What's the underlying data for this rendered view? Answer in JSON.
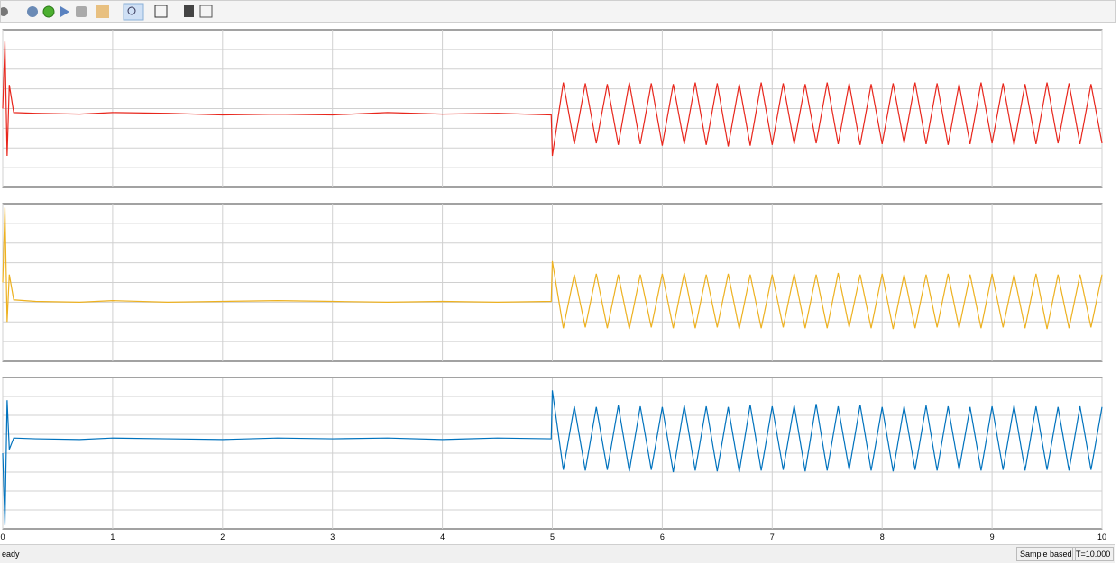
{
  "chart_data": [
    {
      "type": "line",
      "color": "#e8261c",
      "x": [
        0,
        0.02,
        0.04,
        0.06,
        0.1,
        0.3,
        0.7,
        1,
        1.5,
        2,
        2.5,
        3,
        3.5,
        4,
        4.5,
        4.99,
        5,
        5.1,
        5.2,
        5.3,
        5.4,
        5.5,
        5.6,
        5.7,
        5.8,
        5.9,
        6,
        6.1,
        6.2,
        6.3,
        6.4,
        6.5,
        6.6,
        6.7,
        6.8,
        6.9,
        7,
        7.1,
        7.2,
        7.3,
        7.4,
        7.5,
        7.6,
        7.7,
        7.8,
        7.9,
        8,
        8.1,
        8.2,
        8.3,
        8.4,
        8.5,
        8.6,
        8.7,
        8.8,
        8.9,
        9,
        9.1,
        9.2,
        9.3,
        9.4,
        9.5,
        9.6,
        9.7,
        9.8,
        9.9,
        10
      ],
      "values": [
        0,
        0.85,
        -0.6,
        0.3,
        -0.05,
        -0.06,
        -0.07,
        -0.05,
        -0.06,
        -0.08,
        -0.07,
        -0.08,
        -0.05,
        -0.07,
        -0.06,
        -0.08,
        -0.6,
        0.33,
        -0.45,
        0.32,
        -0.44,
        0.31,
        -0.46,
        0.33,
        -0.45,
        0.32,
        -0.47,
        0.31,
        -0.45,
        0.33,
        -0.46,
        0.32,
        -0.48,
        0.31,
        -0.47,
        0.33,
        -0.46,
        0.32,
        -0.45,
        0.31,
        -0.44,
        0.33,
        -0.45,
        0.32,
        -0.46,
        0.31,
        -0.45,
        0.32,
        -0.44,
        0.33,
        -0.45,
        0.32,
        -0.46,
        0.31,
        -0.45,
        0.33,
        -0.44,
        0.32,
        -0.46,
        0.31,
        -0.45,
        0.33,
        -0.44,
        0.32,
        -0.45,
        0.31,
        -0.44
      ],
      "xlim": [
        0,
        10
      ],
      "xticks": [
        0,
        1,
        2,
        3,
        4,
        5,
        6,
        7,
        8,
        9,
        10
      ],
      "ylim": [
        -1,
        1
      ],
      "yticks": [
        -0.75,
        -0.5,
        -0.25,
        0,
        0.25,
        0.5,
        0.75
      ],
      "grid": true
    },
    {
      "type": "line",
      "color": "#edb120",
      "x": [
        0,
        0.02,
        0.04,
        0.06,
        0.1,
        0.3,
        0.7,
        1,
        1.5,
        2,
        2.5,
        3,
        3.5,
        4,
        4.5,
        4.99,
        5,
        5.1,
        5.2,
        5.3,
        5.4,
        5.5,
        5.6,
        5.7,
        5.8,
        5.9,
        6,
        6.1,
        6.2,
        6.3,
        6.4,
        6.5,
        6.6,
        6.7,
        6.8,
        6.9,
        7,
        7.1,
        7.2,
        7.3,
        7.4,
        7.5,
        7.6,
        7.7,
        7.8,
        7.9,
        8,
        8.1,
        8.2,
        8.3,
        8.4,
        8.5,
        8.6,
        8.7,
        8.8,
        8.9,
        9,
        9.1,
        9.2,
        9.3,
        9.4,
        9.5,
        9.6,
        9.7,
        9.8,
        9.9,
        10
      ],
      "values": [
        0,
        0.95,
        -0.5,
        0.1,
        -0.22,
        -0.24,
        -0.25,
        -0.23,
        -0.25,
        -0.24,
        -0.23,
        -0.24,
        -0.25,
        -0.24,
        -0.25,
        -0.24,
        0.27,
        -0.58,
        0.1,
        -0.57,
        0.11,
        -0.58,
        0.1,
        -0.59,
        0.1,
        -0.57,
        0.11,
        -0.58,
        0.12,
        -0.58,
        0.1,
        -0.57,
        0.11,
        -0.59,
        0.1,
        -0.58,
        0.1,
        -0.57,
        0.11,
        -0.58,
        0.1,
        -0.58,
        0.12,
        -0.57,
        0.1,
        -0.58,
        0.11,
        -0.59,
        0.1,
        -0.58,
        0.1,
        -0.57,
        0.11,
        -0.58,
        0.1,
        -0.58,
        0.11,
        -0.57,
        0.1,
        -0.58,
        0.11,
        -0.59,
        0.1,
        -0.58,
        0.1,
        -0.57,
        0.1
      ],
      "xlim": [
        0,
        10
      ],
      "xticks": [
        0,
        1,
        2,
        3,
        4,
        5,
        6,
        7,
        8,
        9,
        10
      ],
      "ylim": [
        -1,
        1
      ],
      "yticks": [
        -0.75,
        -0.5,
        -0.25,
        0,
        0.25,
        0.5,
        0.75
      ],
      "grid": true
    },
    {
      "type": "line",
      "color": "#0072bd",
      "x": [
        0,
        0.02,
        0.04,
        0.06,
        0.1,
        0.3,
        0.7,
        1,
        1.5,
        2,
        2.5,
        3,
        3.5,
        4,
        4.5,
        4.99,
        5,
        5.1,
        5.2,
        5.3,
        5.4,
        5.5,
        5.6,
        5.7,
        5.8,
        5.9,
        6,
        6.1,
        6.2,
        6.3,
        6.4,
        6.5,
        6.6,
        6.7,
        6.8,
        6.9,
        7,
        7.1,
        7.2,
        7.3,
        7.4,
        7.5,
        7.6,
        7.7,
        7.8,
        7.9,
        8,
        8.1,
        8.2,
        8.3,
        8.4,
        8.5,
        8.6,
        8.7,
        8.8,
        8.9,
        9,
        9.1,
        9.2,
        9.3,
        9.4,
        9.5,
        9.6,
        9.7,
        9.8,
        9.9,
        10
      ],
      "values": [
        0,
        -0.95,
        0.7,
        0.05,
        0.2,
        0.19,
        0.18,
        0.2,
        0.19,
        0.18,
        0.2,
        0.19,
        0.2,
        0.18,
        0.2,
        0.19,
        0.83,
        -0.22,
        0.62,
        -0.23,
        0.61,
        -0.22,
        0.63,
        -0.24,
        0.62,
        -0.22,
        0.61,
        -0.25,
        0.63,
        -0.23,
        0.62,
        -0.24,
        0.61,
        -0.25,
        0.64,
        -0.23,
        0.62,
        -0.22,
        0.63,
        -0.24,
        0.65,
        -0.23,
        0.62,
        -0.22,
        0.64,
        -0.23,
        0.61,
        -0.24,
        0.62,
        -0.22,
        0.63,
        -0.23,
        0.62,
        -0.22,
        0.61,
        -0.23,
        0.62,
        -0.22,
        0.63,
        -0.23,
        0.62,
        -0.22,
        0.61,
        -0.23,
        0.62,
        -0.22,
        0.61
      ],
      "xlim": [
        0,
        10
      ],
      "xticks": [
        0,
        1,
        2,
        3,
        4,
        5,
        6,
        7,
        8,
        9,
        10
      ],
      "ylim": [
        -1,
        1
      ],
      "yticks": [
        -0.75,
        -0.5,
        -0.25,
        0,
        0.25,
        0.5,
        0.75
      ],
      "grid": true
    }
  ],
  "status_bar": {
    "status": "eady",
    "mode": "Sample based",
    "time": "T=10.000"
  }
}
